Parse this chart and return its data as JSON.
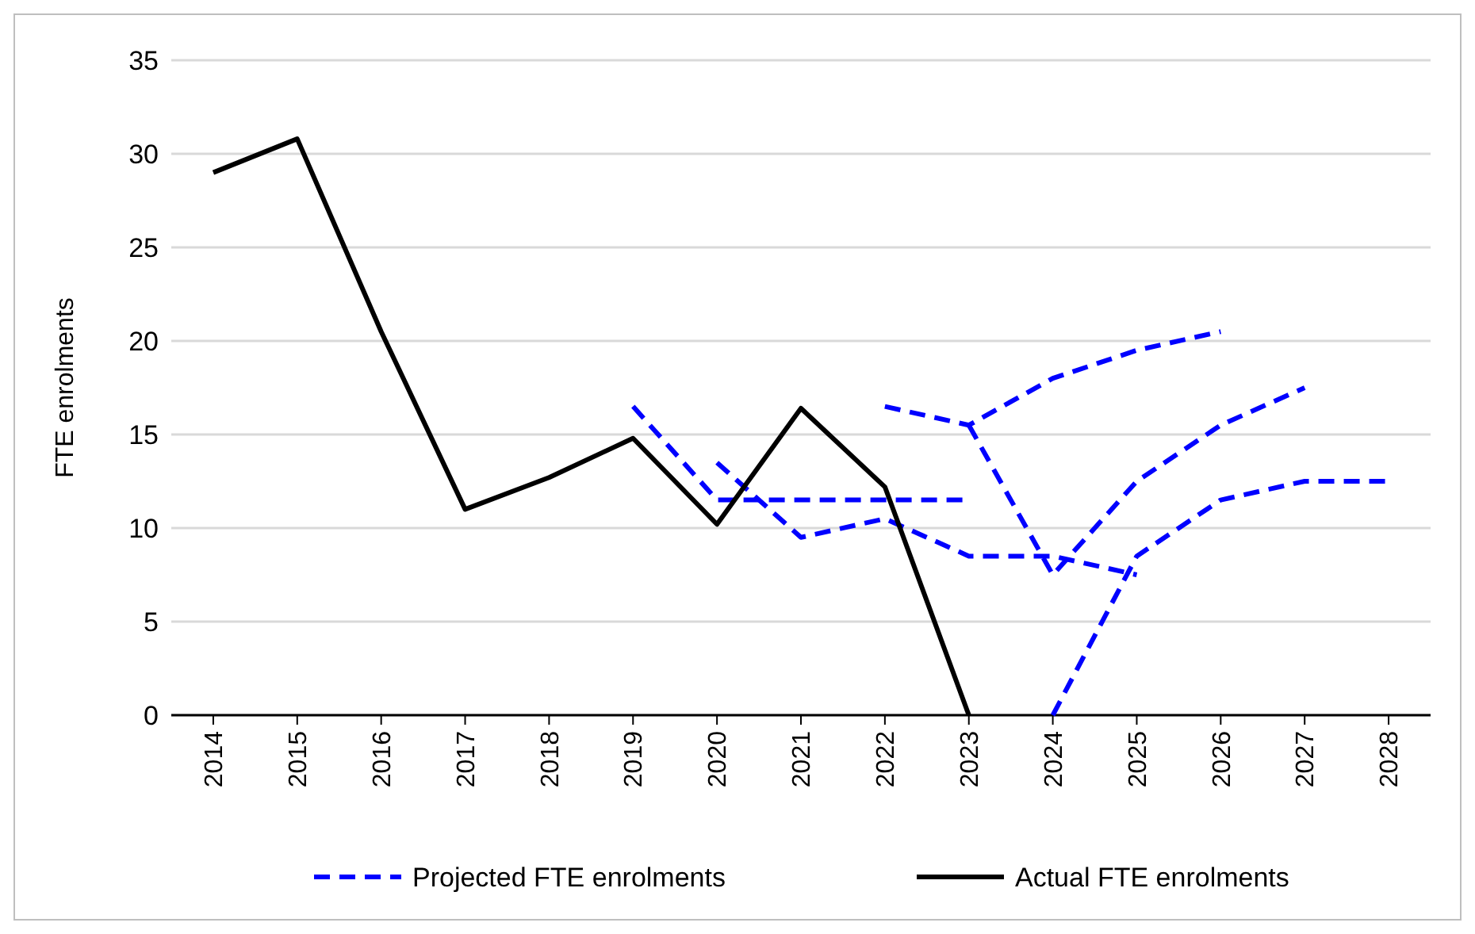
{
  "chart_data": {
    "type": "line",
    "ylabel": "FTE enrolments",
    "xlim": [
      2013.5,
      2028.5
    ],
    "xticks": [
      2014,
      2015,
      2016,
      2017,
      2018,
      2019,
      2020,
      2021,
      2022,
      2023,
      2024,
      2025,
      2026,
      2027,
      2028
    ],
    "ylim": [
      0,
      35
    ],
    "yticks": [
      0,
      5,
      10,
      15,
      20,
      25,
      30,
      35
    ],
    "grid": "y",
    "legend": "bottom",
    "series": [
      {
        "name": "Projected FTE enrolments",
        "color": "#0000ff",
        "line_style": "dashed",
        "x": [
          2019,
          2020,
          2021,
          2022,
          2023
        ],
        "values": [
          16.5,
          11.5,
          11.5,
          11.5,
          11.5
        ]
      },
      {
        "color": "#0000ff",
        "line_style": "dashed",
        "x": [
          2020,
          2021,
          2022,
          2023,
          2024,
          2025
        ],
        "values": [
          13.5,
          9.5,
          10.5,
          8.5,
          8.5,
          7.5
        ]
      },
      {
        "color": "#0000ff",
        "line_style": "dashed",
        "x": [
          2022,
          2023,
          2024,
          2025,
          2026
        ],
        "values": [
          16.5,
          15.5,
          18,
          19.5,
          20.5
        ]
      },
      {
        "color": "#0000ff",
        "line_style": "dashed",
        "x": [
          2023,
          2024,
          2025,
          2026,
          2027
        ],
        "values": [
          15.5,
          7.5,
          12.5,
          15.5,
          17.5
        ]
      },
      {
        "color": "#0000ff",
        "line_style": "dashed",
        "x": [
          2024,
          2025,
          2026,
          2027,
          2028
        ],
        "values": [
          0,
          8.5,
          11.5,
          12.5,
          12.5
        ]
      },
      {
        "name": "Actual FTE enrolments",
        "color": "#000000",
        "line_style": "solid",
        "x": [
          2014,
          2015,
          2016,
          2017,
          2018,
          2019,
          2020,
          2021,
          2022,
          2023
        ],
        "values": [
          29,
          30.8,
          20.5,
          11,
          12.7,
          14.8,
          10.2,
          16.4,
          12.2,
          0
        ]
      }
    ]
  }
}
